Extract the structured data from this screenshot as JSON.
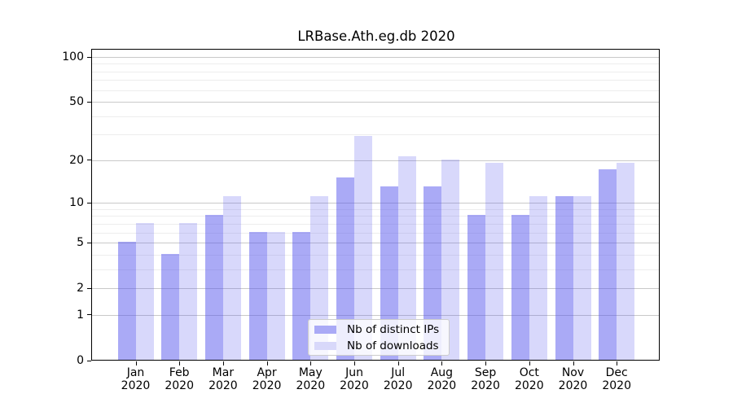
{
  "figure": {
    "title": "LRBase.Ath.eg.db 2020"
  },
  "legend": {
    "items": [
      {
        "label": "Nb of distinct IPs"
      },
      {
        "label": "Nb of downloads"
      }
    ]
  },
  "chart_data": {
    "type": "bar",
    "title": "LRBase.Ath.eg.db 2020",
    "categories": [
      "Jan 2020",
      "Feb 2020",
      "Mar 2020",
      "Apr 2020",
      "May 2020",
      "Jun 2020",
      "Jul 2020",
      "Aug 2020",
      "Sep 2020",
      "Oct 2020",
      "Nov 2020",
      "Dec 2020"
    ],
    "x_tick_months": [
      "Jan",
      "Feb",
      "Mar",
      "Apr",
      "May",
      "Jun",
      "Jul",
      "Aug",
      "Sep",
      "Oct",
      "Nov",
      "Dec"
    ],
    "x_tick_year": "2020",
    "series": [
      {
        "name": "Nb of distinct IPs",
        "color": "rgba(85,85,238,0.5)",
        "legend_color": "#aaaaf6",
        "values": [
          5,
          4,
          8,
          6,
          6,
          15,
          13,
          13,
          8,
          8,
          11,
          17
        ]
      },
      {
        "name": "Nb of downloads",
        "color": "rgba(85,85,238,0.23)",
        "legend_color": "#d8d8fa",
        "values": [
          7,
          7,
          11,
          6,
          11,
          29,
          21,
          20,
          19,
          11,
          11,
          19
        ]
      }
    ],
    "y_scale": "log1p",
    "ylim": [
      0,
      113
    ],
    "y_major_ticks": [
      0,
      1,
      2,
      5,
      10,
      20,
      50,
      100
    ],
    "y_minor_gridlines": [
      3,
      4,
      6,
      7,
      8,
      9,
      30,
      40,
      60,
      70,
      80,
      90
    ],
    "grid": true,
    "legend_position": "lower center",
    "colors": {
      "major_grid": "#c9c9c9",
      "minor_grid": "#ededed",
      "axis": "#000000",
      "text": "#000000",
      "background": "#ffffff"
    }
  }
}
